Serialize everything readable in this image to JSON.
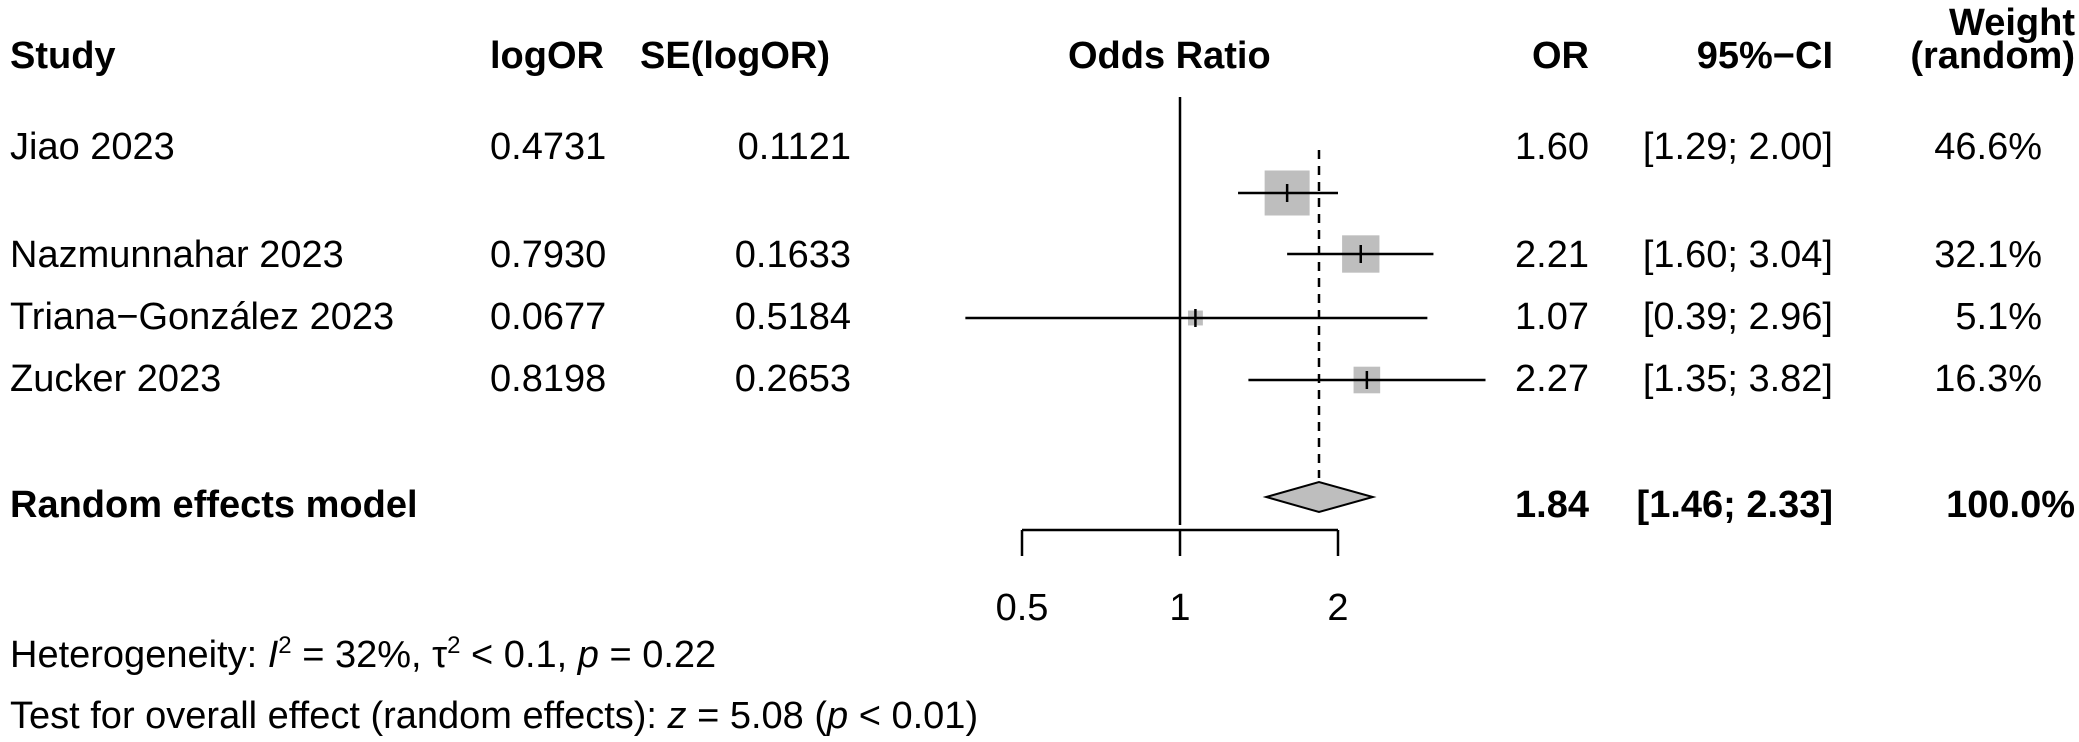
{
  "headers": {
    "study": "Study",
    "logor": "logOR",
    "se": "SE(logOR)",
    "plot": "Odds Ratio",
    "or": "OR",
    "ci": "95%−CI",
    "weight_line1": "Weight",
    "weight_line2": "(random)"
  },
  "studies": [
    {
      "name": "Jiao 2023",
      "logor": "0.4731",
      "se": "0.1121",
      "or": "1.60",
      "ci": "[1.29; 2.00]",
      "weight": "46.6%"
    },
    {
      "name": "Nazmunnahar 2023",
      "logor": "0.7930",
      "se": "0.1633",
      "or": "2.21",
      "ci": "[1.60; 3.04]",
      "weight": "32.1%"
    },
    {
      "name": "Triana−González 2023",
      "logor": "0.0677",
      "se": "0.5184",
      "or": "1.07",
      "ci": "[0.39; 2.96]",
      "weight": "5.1%"
    },
    {
      "name": "Zucker 2023",
      "logor": "0.8198",
      "se": "0.2653",
      "or": "2.27",
      "ci": "[1.35; 3.82]",
      "weight": "16.3%"
    }
  ],
  "summary": {
    "label": "Random effects model",
    "or": "1.84",
    "ci": "[1.46; 2.33]",
    "weight": "100.0%"
  },
  "footer": {
    "het_prefix": "Heterogeneity: ",
    "het_i2_symbol": "I",
    "het_i2_sup": "2",
    "het_i2_val": " = 32%, ",
    "het_tau_symbol": "τ",
    "het_tau_sup": "2",
    "het_tau_val": " < 0.1, ",
    "het_p_symbol": "p",
    "het_p_val": " = 0.22",
    "test_prefix": "Test for overall effect (random effects): ",
    "test_z_symbol": "z",
    "test_z_val": " = 5.08 (",
    "test_p_symbol": "p",
    "test_p_val": " < 0.01)"
  },
  "chart_data": {
    "type": "forest",
    "title": "Odds Ratio",
    "scale": "log",
    "xlim": [
      0.5,
      2.6
    ],
    "ticks": [
      {
        "value": 0.5,
        "label": "0.5"
      },
      {
        "value": 1,
        "label": "1"
      },
      {
        "value": 2,
        "label": "2"
      }
    ],
    "null_line": 1,
    "summary_line": 1.84,
    "studies": [
      {
        "name": "Jiao 2023",
        "or": 1.6,
        "lower": 1.29,
        "upper": 2.0,
        "weight": 46.6
      },
      {
        "name": "Nazmunnahar 2023",
        "or": 2.21,
        "lower": 1.6,
        "upper": 3.04,
        "weight": 32.1,
        "upper_clipped": true
      },
      {
        "name": "Triana−González 2023",
        "or": 1.07,
        "lower": 0.39,
        "upper": 2.96,
        "weight": 5.1,
        "lower_clipped": true,
        "upper_clipped": true
      },
      {
        "name": "Zucker 2023",
        "or": 2.27,
        "lower": 1.35,
        "upper": 3.82,
        "weight": 16.3,
        "upper_clipped": true
      }
    ],
    "pooled": {
      "or": 1.84,
      "lower": 1.46,
      "upper": 2.33
    },
    "colors": {
      "box": "#bebebe",
      "diamond": "#bebebe",
      "line": "#000000"
    }
  }
}
